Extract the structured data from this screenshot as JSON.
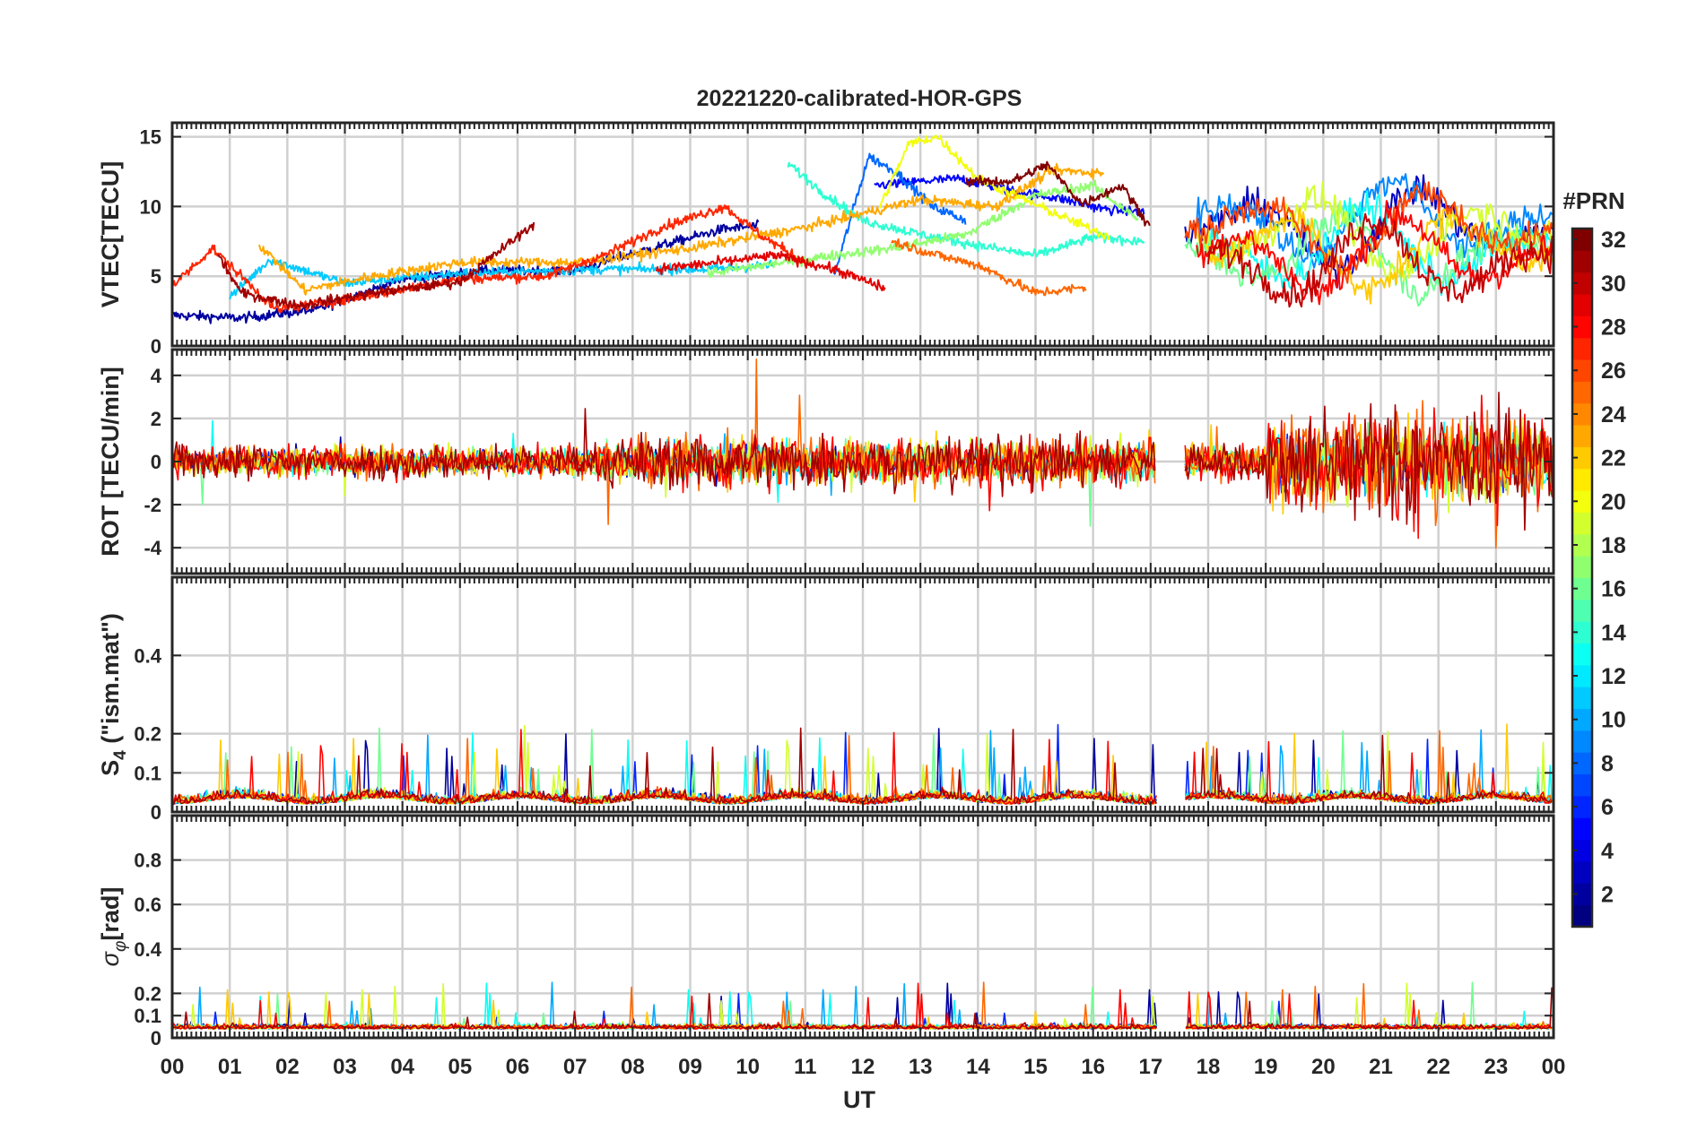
{
  "chart_data": {
    "type": "line",
    "title": "20221220-calibrated-HOR-GPS",
    "xlabel": "UT",
    "x_ticks": [
      "00",
      "01",
      "02",
      "03",
      "04",
      "05",
      "06",
      "07",
      "08",
      "09",
      "10",
      "11",
      "12",
      "13",
      "14",
      "15",
      "16",
      "17",
      "18",
      "19",
      "20",
      "21",
      "22",
      "23",
      "00"
    ],
    "xlim_hours": [
      0,
      24
    ],
    "data_gap_hours": [
      17.1,
      17.6
    ],
    "grid": true,
    "panels": [
      {
        "name": "vtec",
        "ylabel": "VTEC[TECU]",
        "ylim": [
          0,
          16
        ],
        "yticks": [
          0,
          5,
          10,
          15
        ],
        "ytick_labels": [
          "0",
          "5",
          "10",
          "15"
        ]
      },
      {
        "name": "rot",
        "ylabel": "ROT [TECU/min]",
        "ylim": [
          -5.2,
          5.2
        ],
        "yticks": [
          -4,
          -2,
          0,
          2,
          4
        ],
        "ytick_labels": [
          "-4",
          "-2",
          "0",
          "2",
          "4"
        ]
      },
      {
        "name": "s4",
        "ylabel": "S4 (\"ism.mat\")",
        "ylabel_main": "S",
        "ylabel_sub": "4",
        "ylabel_rest": " (\"ism.mat\")",
        "ylim": [
          0,
          0.6
        ],
        "yticks": [
          0,
          0.1,
          0.2,
          0.4
        ],
        "ytick_labels": [
          "0",
          "0.1",
          "0.2",
          "0.4"
        ]
      },
      {
        "name": "sigma",
        "ylabel": "σφ[rad]",
        "ylabel_main": "σ",
        "ylabel_sub": "φ",
        "ylabel_rest": "[rad]",
        "ylim": [
          0,
          1.0
        ],
        "yticks": [
          0,
          0.1,
          0.2,
          0.4,
          0.6,
          0.8
        ],
        "ytick_labels": [
          "0",
          "0.1",
          "0.2",
          "0.4",
          "0.6",
          "0.8"
        ]
      }
    ],
    "colorbar": {
      "label": "#PRN",
      "range": [
        1,
        32
      ],
      "tick_labels": [
        "2",
        "4",
        "6",
        "8",
        "10",
        "12",
        "14",
        "16",
        "18",
        "20",
        "22",
        "24",
        "26",
        "28",
        "30",
        "32"
      ],
      "colormap": "jet"
    },
    "series": [
      {
        "prn": 2,
        "vtec": [
          [
            0,
            2.2
          ],
          [
            1.2,
            2.0
          ],
          [
            2.5,
            2.6
          ],
          [
            4,
            4.8
          ],
          [
            5.5,
            5.4
          ],
          [
            7,
            5.4
          ],
          [
            8.5,
            7.2
          ],
          [
            9.6,
            8.4
          ],
          [
            10.2,
            8.6
          ]
        ]
      },
      {
        "prn": 5,
        "vtec": [
          [
            12.2,
            11.5
          ],
          [
            13,
            11.8
          ],
          [
            13.7,
            12.0
          ],
          [
            14.5,
            11.2
          ],
          [
            15.4,
            10.6
          ],
          [
            16.2,
            9.8
          ],
          [
            16.9,
            9.6
          ]
        ]
      },
      {
        "prn": 8,
        "vtec": [
          [
            11.5,
            5.0
          ],
          [
            12.1,
            13.6
          ],
          [
            12.6,
            12.4
          ],
          [
            13.2,
            10.0
          ],
          [
            13.8,
            9.0
          ]
        ]
      },
      {
        "prn": 11,
        "vtec": [
          [
            1.0,
            3.5
          ],
          [
            1.7,
            6.2
          ],
          [
            3,
            4.5
          ],
          [
            5,
            5.2
          ],
          [
            7.5,
            5.5
          ],
          [
            9.3,
            5.5
          ],
          [
            10.5,
            5.8
          ]
        ]
      },
      {
        "prn": 14,
        "vtec": [
          [
            10.7,
            13.1
          ],
          [
            11.3,
            11.0
          ],
          [
            12,
            9.0
          ],
          [
            13,
            8.0
          ],
          [
            14,
            7.2
          ],
          [
            15,
            6.5
          ],
          [
            16,
            7.8
          ],
          [
            16.9,
            7.5
          ]
        ]
      },
      {
        "prn": 17,
        "vtec": [
          [
            9.3,
            5.2
          ],
          [
            10.3,
            5.8
          ],
          [
            11.5,
            6.5
          ],
          [
            12.5,
            7.0
          ],
          [
            13.8,
            8.0
          ],
          [
            15,
            10.8
          ],
          [
            16,
            11.5
          ],
          [
            16.8,
            9.0
          ]
        ]
      },
      {
        "prn": 20,
        "vtec": [
          [
            12.3,
            10.0
          ],
          [
            12.8,
            14.5
          ],
          [
            13.3,
            15.0
          ],
          [
            14,
            12.0
          ],
          [
            14.8,
            10.5
          ],
          [
            15.5,
            9.2
          ],
          [
            16.3,
            7.8
          ]
        ]
      },
      {
        "prn": 23,
        "vtec": [
          [
            1.5,
            7.3
          ],
          [
            2.3,
            4.0
          ],
          [
            3.5,
            5.0
          ],
          [
            5,
            6.0
          ],
          [
            7,
            6.0
          ],
          [
            9,
            7.0
          ],
          [
            11,
            8.5
          ],
          [
            13,
            10.5
          ],
          [
            14.3,
            10.0
          ],
          [
            15.3,
            12.6
          ],
          [
            16.2,
            12.4
          ]
        ]
      },
      {
        "prn": 25,
        "vtec": [
          [
            12.5,
            7.5
          ],
          [
            13.3,
            6.5
          ],
          [
            14,
            5.8
          ],
          [
            15,
            3.8
          ],
          [
            15.9,
            4.2
          ]
        ]
      },
      {
        "prn": 27,
        "vtec": [
          [
            0,
            4.3
          ],
          [
            0.7,
            7.0
          ],
          [
            1.8,
            2.6
          ],
          [
            3,
            3.3
          ],
          [
            5,
            4.8
          ],
          [
            6.5,
            5.0
          ],
          [
            7.5,
            6.5
          ],
          [
            8.5,
            8.5
          ],
          [
            9.6,
            10.0
          ],
          [
            10.2,
            8.0
          ],
          [
            11.0,
            6.0
          ]
        ]
      },
      {
        "prn": 29,
        "vtec": [
          [
            8.4,
            5.5
          ],
          [
            9.5,
            6.0
          ],
          [
            10.5,
            6.5
          ],
          [
            11.5,
            5.5
          ],
          [
            12.4,
            4.1
          ]
        ]
      },
      {
        "prn": 31,
        "vtec": [
          [
            0.8,
            6.5
          ],
          [
            1.2,
            3.8
          ],
          [
            2.2,
            2.9
          ],
          [
            3.5,
            3.8
          ],
          [
            5,
            4.6
          ],
          [
            6.3,
            8.8
          ]
        ]
      },
      {
        "prn": 32,
        "vtec": [
          [
            13.8,
            11.8
          ],
          [
            14.6,
            11.8
          ],
          [
            15.2,
            13.0
          ],
          [
            15.8,
            10.2
          ],
          [
            16.5,
            11.5
          ],
          [
            17,
            8.5
          ]
        ]
      }
    ]
  }
}
